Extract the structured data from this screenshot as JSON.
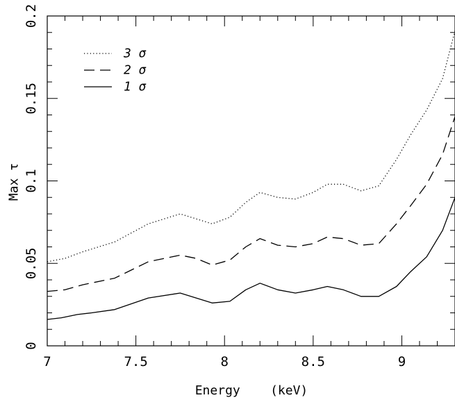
{
  "chart_data": {
    "type": "line",
    "title": "",
    "xlabel": "Energy    (keV)",
    "ylabel": "Max τ",
    "xlim": [
      7,
      9.3
    ],
    "ylim": [
      0,
      0.2
    ],
    "xticks": [
      7,
      7.5,
      8,
      8.5,
      9
    ],
    "xtick_labels": [
      "7",
      "7.5",
      "8",
      "8.5",
      "9"
    ],
    "yticks": [
      0,
      0.05,
      0.1,
      0.15,
      0.2
    ],
    "ytick_labels": [
      "0",
      "0.05",
      "0.1",
      "0.15",
      "0.2"
    ],
    "grid": false,
    "legend_position": "top-left",
    "series": [
      {
        "name": "3 σ",
        "style": "dotted",
        "color": "#000000",
        "x": [
          7.0,
          7.1,
          7.2,
          7.38,
          7.57,
          7.75,
          7.93,
          8.03,
          8.12,
          8.2,
          8.3,
          8.4,
          8.5,
          8.58,
          8.67,
          8.77,
          8.87,
          8.97,
          9.05,
          9.14,
          9.23,
          9.3
        ],
        "y": [
          0.051,
          0.053,
          0.057,
          0.063,
          0.074,
          0.08,
          0.074,
          0.078,
          0.087,
          0.093,
          0.09,
          0.089,
          0.093,
          0.098,
          0.098,
          0.094,
          0.097,
          0.113,
          0.128,
          0.143,
          0.162,
          0.191
        ]
      },
      {
        "name": "2 σ",
        "style": "dashed",
        "color": "#000000",
        "x": [
          7.0,
          7.1,
          7.2,
          7.38,
          7.57,
          7.75,
          7.84,
          7.93,
          8.03,
          8.12,
          8.2,
          8.3,
          8.4,
          8.5,
          8.58,
          8.67,
          8.77,
          8.87,
          8.97,
          9.05,
          9.14,
          9.23,
          9.3
        ],
        "y": [
          0.033,
          0.034,
          0.037,
          0.041,
          0.051,
          0.055,
          0.053,
          0.049,
          0.052,
          0.06,
          0.065,
          0.061,
          0.06,
          0.062,
          0.066,
          0.065,
          0.061,
          0.062,
          0.074,
          0.085,
          0.098,
          0.116,
          0.139
        ]
      },
      {
        "name": "1 σ",
        "style": "solid",
        "color": "#000000",
        "x": [
          7.0,
          7.08,
          7.17,
          7.25,
          7.38,
          7.57,
          7.75,
          7.84,
          7.93,
          8.03,
          8.12,
          8.2,
          8.3,
          8.4,
          8.5,
          8.58,
          8.67,
          8.77,
          8.87,
          8.97,
          9.05,
          9.14,
          9.23,
          9.3
        ],
        "y": [
          0.016,
          0.017,
          0.019,
          0.02,
          0.022,
          0.029,
          0.032,
          0.029,
          0.026,
          0.027,
          0.034,
          0.038,
          0.034,
          0.032,
          0.034,
          0.036,
          0.034,
          0.03,
          0.03,
          0.036,
          0.045,
          0.054,
          0.07,
          0.09
        ]
      }
    ]
  }
}
